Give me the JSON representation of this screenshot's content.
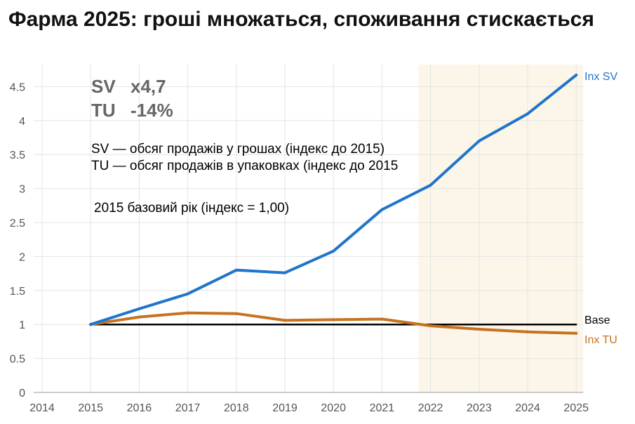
{
  "title": "Фарма 2025: гроші множаться, споживання стискається",
  "colors": {
    "sv": "#1f75c9",
    "tu": "#c57320",
    "base": "#000000",
    "forecast_band": "#fcf6ea",
    "grid": "#e4e4e4"
  },
  "stats": [
    {
      "label": "SV",
      "value": "x4,7"
    },
    {
      "label": "TU",
      "value": "-14%"
    }
  ],
  "notes": [
    "SV — обсяг продажів у грошах (індекс до 2015)",
    "TU — обсяг продажів в упаковках (індекс до 2015"
  ],
  "base_note": "2015 базовий рік (індекс = 1,00)",
  "chart_data": {
    "type": "line",
    "x": [
      2014,
      2015,
      2016,
      2017,
      2018,
      2019,
      2020,
      2021,
      2022,
      2023,
      2024,
      2025
    ],
    "x_tick_labels": [
      "2014",
      "2015",
      "2016",
      "2017",
      "2018",
      "2019",
      "2020",
      "2021",
      "2022",
      "2023",
      "2024",
      "2025"
    ],
    "y_tick_labels": [
      "0",
      "0.5",
      "1",
      "1.5",
      "2",
      "2.5",
      "3",
      "3.5",
      "4",
      "4.5"
    ],
    "ylim": [
      0,
      4.7
    ],
    "xlim": [
      2014,
      2025
    ],
    "grid": true,
    "forecast_shading": [
      2021.75,
      2025
    ],
    "series": [
      {
        "name": "Inx SV",
        "key": "sv",
        "x": [
          2015,
          2016,
          2017,
          2018,
          2019,
          2020,
          2021,
          2022,
          2023,
          2024,
          2025
        ],
        "values": [
          1.0,
          1.23,
          1.45,
          1.8,
          1.76,
          2.08,
          2.69,
          3.05,
          3.7,
          4.1,
          4.67
        ]
      },
      {
        "name": "Inx TU",
        "key": "tu",
        "x": [
          2015,
          2016,
          2017,
          2018,
          2019,
          2020,
          2021,
          2022,
          2023,
          2024,
          2025
        ],
        "values": [
          1.0,
          1.11,
          1.17,
          1.16,
          1.06,
          1.07,
          1.08,
          0.98,
          0.93,
          0.89,
          0.87
        ]
      },
      {
        "name": "Base",
        "key": "base",
        "x": [
          2015,
          2025
        ],
        "values": [
          1.0,
          1.0
        ]
      }
    ]
  }
}
